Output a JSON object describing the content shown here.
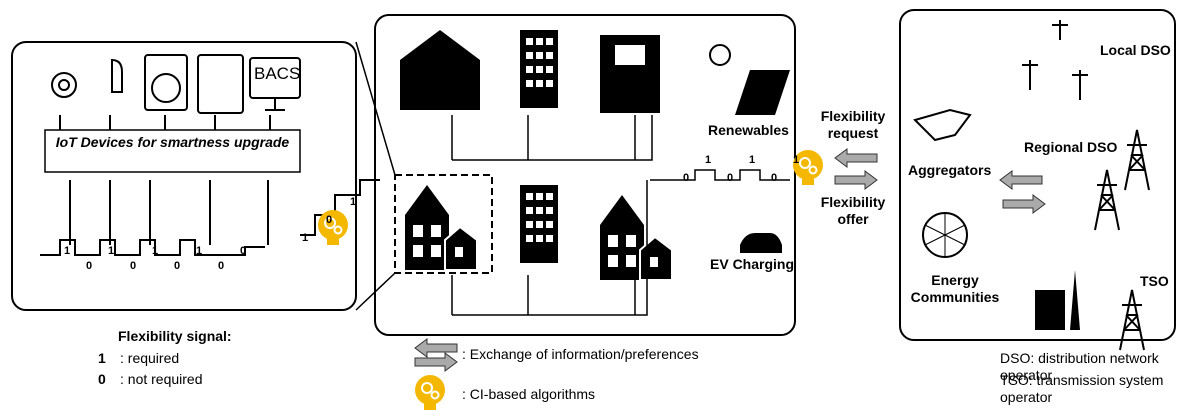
{
  "left_panel": {
    "iot_label": "IoT Devices for smartness upgrade",
    "bacs": "BACS",
    "signal": [
      "1",
      "0",
      "1",
      "0",
      "1",
      "0",
      "1",
      "0",
      "0"
    ]
  },
  "legend": {
    "title": "Flexibility signal:",
    "items": [
      {
        "symbol": "1",
        "text": ": required"
      },
      {
        "symbol": "0",
        "text": ": not required"
      }
    ],
    "exchange": ": Exchange of  information/preferences",
    "ci": ": CI-based algorithms"
  },
  "center_panel": {
    "renewables": "Renewables",
    "ev": "EV Charging",
    "signal": [
      "0",
      "1",
      "0",
      "1",
      "0",
      "1"
    ],
    "house_signal": [
      "1",
      "0",
      "1"
    ]
  },
  "flexibility": {
    "request": "Flexibility request",
    "offer": "Flexibility offer"
  },
  "right_panel": {
    "aggregators": "Aggregators",
    "communities": "Energy Communities",
    "local_dso": "Local DSO",
    "regional_dso": "Regional DSO",
    "tso": "TSO"
  },
  "notes": [
    "DSO: distribution network operator",
    "TSO: transmission system operator"
  ]
}
